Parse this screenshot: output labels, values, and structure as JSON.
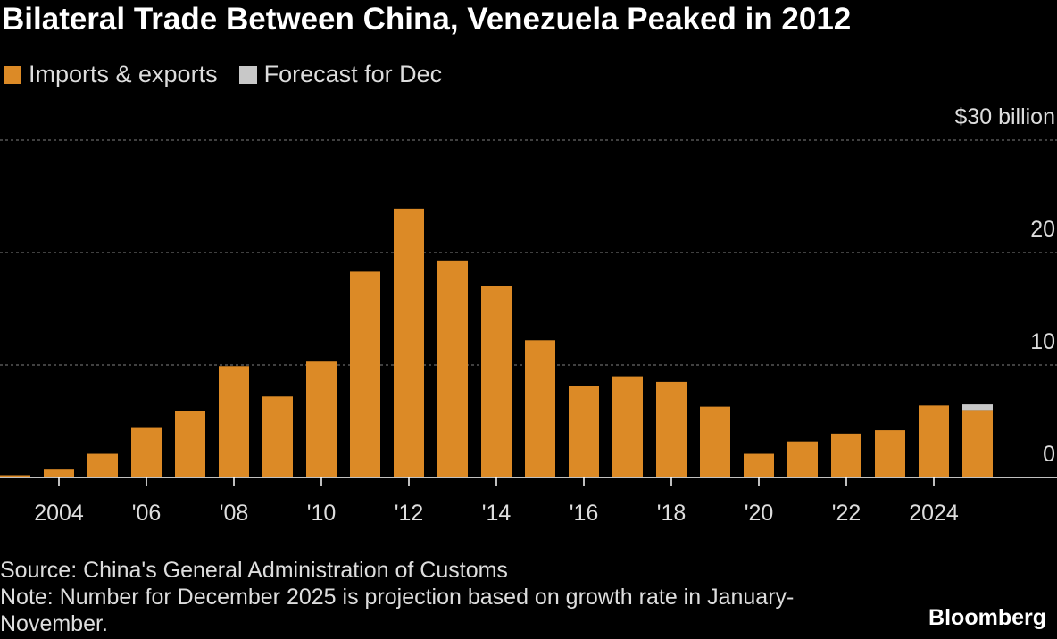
{
  "chart_data": {
    "type": "bar",
    "stacked": true,
    "title": "Bilateral Trade Between China, Venezuela Peaked in 2012",
    "categories": [
      null,
      "2004",
      null,
      "'06",
      null,
      "'08",
      null,
      "'10",
      null,
      "'12",
      null,
      "'14",
      null,
      "'16",
      null,
      "'18",
      null,
      "'20",
      null,
      "'22",
      null,
      "2024",
      null
    ],
    "series": [
      {
        "name": "Imports & exports",
        "color": "#dc8a26",
        "values": [
          0.2,
          0.7,
          2.1,
          4.4,
          5.9,
          9.9,
          7.2,
          10.3,
          18.3,
          23.9,
          19.3,
          17.0,
          12.2,
          8.1,
          9.0,
          8.5,
          6.3,
          2.1,
          3.2,
          3.9,
          4.2,
          6.4,
          6.0
        ]
      },
      {
        "name": "Forecast for Dec",
        "color": "#c8c8c8",
        "values": [
          null,
          null,
          null,
          null,
          null,
          null,
          null,
          null,
          null,
          null,
          null,
          null,
          null,
          null,
          null,
          null,
          null,
          null,
          null,
          null,
          null,
          null,
          0.5
        ]
      }
    ],
    "ylim": [
      0,
      30
    ],
    "yticks": [
      0,
      10,
      20,
      {
        "value": 30,
        "label": "$30 billion"
      }
    ],
    "grid": true,
    "source": "Source: China's General Administration of Customs",
    "note": "Note: Number for December 2025 is projection based on growth rate in January-November.",
    "brand": "Bloomberg"
  }
}
